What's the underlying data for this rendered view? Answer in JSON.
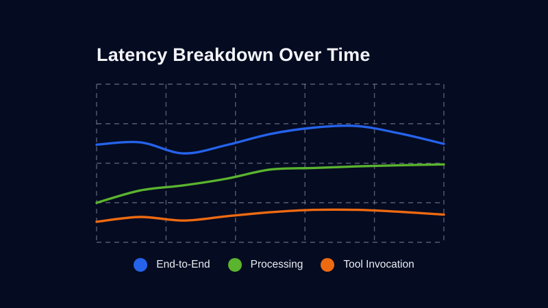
{
  "title": "Latency Breakdown Over Time",
  "colors": {
    "background": "#050b21",
    "title_text": "#f2f4f8",
    "grid": "#99a3b8",
    "legend_text": "#e9edf3",
    "end_to_end": "#2563eb",
    "processing": "#5ab42e",
    "tool_invocation": "#ee6a11"
  },
  "chart_data": {
    "type": "line",
    "title": "Latency Breakdown Over Time",
    "x": [
      0,
      1,
      2,
      3,
      4,
      5,
      6,
      7,
      8
    ],
    "xlabel": "",
    "ylabel": "",
    "ylim": [
      0,
      4
    ],
    "axis_tick_labels_visible": false,
    "grid": {
      "rows": 4,
      "cols": 5,
      "style": "dashed",
      "on": true
    },
    "legend_position": "bottom",
    "series": [
      {
        "name": "End-to-End",
        "color": "#2563eb",
        "values": [
          2.47,
          2.53,
          2.25,
          2.46,
          2.74,
          2.9,
          2.94,
          2.75,
          2.49
        ]
      },
      {
        "name": "Processing",
        "color": "#5ab42e",
        "values": [
          1.0,
          1.31,
          1.44,
          1.61,
          1.84,
          1.88,
          1.92,
          1.95,
          1.97
        ]
      },
      {
        "name": "Tool Invocation",
        "color": "#ee6a11",
        "values": [
          0.52,
          0.64,
          0.55,
          0.66,
          0.76,
          0.82,
          0.82,
          0.77,
          0.7
        ]
      }
    ]
  }
}
